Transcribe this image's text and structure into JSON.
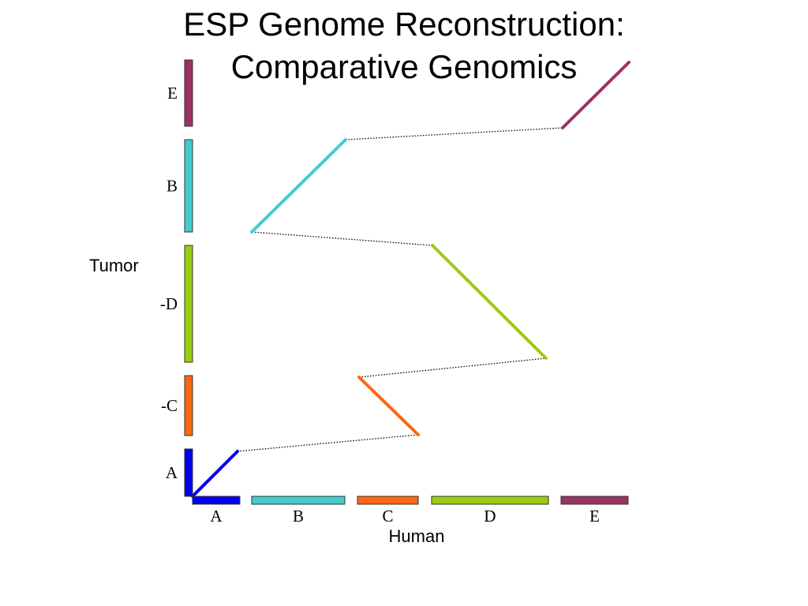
{
  "slide": {
    "title_line1": "ESP Genome Reconstruction:",
    "title_line2": "Comparative Genomics"
  },
  "axes": {
    "x_title": "Human",
    "y_title": "Tumor"
  },
  "colors": {
    "A": "#0000ee",
    "B": "#44cccc",
    "C": "#ff6611",
    "D": "#99cc11",
    "E": "#993366"
  },
  "human_segments": [
    {
      "label": "A",
      "color": "#0000ee",
      "start": 0,
      "end": 60
    },
    {
      "label": "B",
      "color": "#44cccc",
      "start": 75,
      "end": 193
    },
    {
      "label": "C",
      "color": "#ff6611",
      "start": 209,
      "end": 286
    },
    {
      "label": "D",
      "color": "#99cc11",
      "start": 303,
      "end": 451
    },
    {
      "label": "E",
      "color": "#993366",
      "start": 467,
      "end": 552
    }
  ],
  "tumor_segments": [
    {
      "label": "A",
      "color": "#0000ee",
      "start": 0,
      "end": 60
    },
    {
      "label": "-C",
      "color": "#ff6611",
      "start": 77,
      "end": 153
    },
    {
      "label": "-D",
      "color": "#99cc11",
      "start": 170,
      "end": 318
    },
    {
      "label": "B",
      "color": "#44cccc",
      "start": 335,
      "end": 452
    },
    {
      "label": "E",
      "color": "#993366",
      "start": 469,
      "end": 553
    }
  ],
  "alignments": [
    {
      "segment": "A",
      "color": "#0000ee",
      "human": [
        0,
        57
      ],
      "tumor": [
        0,
        57
      ]
    },
    {
      "segment": "C",
      "color": "#ff6611",
      "human": [
        286,
        211
      ],
      "tumor": [
        78,
        151
      ]
    },
    {
      "segment": "D",
      "color": "#99cc11",
      "human": [
        448,
        304
      ],
      "tumor": [
        175,
        318
      ]
    },
    {
      "segment": "B",
      "color": "#44cccc",
      "human": [
        75,
        194
      ],
      "tumor": [
        335,
        452
      ]
    },
    {
      "segment": "E",
      "color": "#993366",
      "human": [
        469,
        553
      ],
      "tumor": [
        467,
        550
      ]
    }
  ],
  "connectors": [
    {
      "from": [
        57,
        57
      ],
      "to": [
        286,
        78
      ]
    },
    {
      "from": [
        211,
        151
      ],
      "to": [
        448,
        175
      ]
    },
    {
      "from": [
        304,
        318
      ],
      "to": [
        75,
        335
      ]
    },
    {
      "from": [
        194,
        452
      ],
      "to": [
        469,
        467
      ]
    }
  ]
}
